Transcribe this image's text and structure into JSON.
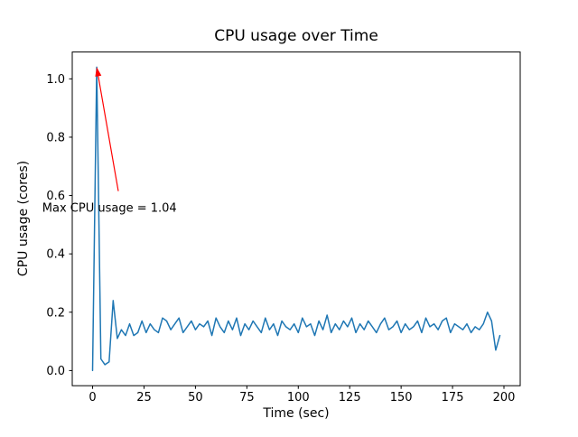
{
  "chart_data": {
    "type": "line",
    "title": "CPU usage over Time",
    "xlabel": "Time (sec)",
    "ylabel": "CPU usage (cores)",
    "line_color": "#1f77b4",
    "axis_color": "#000000",
    "background_color": "#ffffff",
    "grid": false,
    "legend": "none",
    "xlim": [
      -9.9,
      207.9
    ],
    "ylim": [
      -0.052,
      1.092
    ],
    "xticks": [
      0,
      25,
      50,
      75,
      100,
      125,
      150,
      175,
      200
    ],
    "yticks": [
      0.0,
      0.2,
      0.4,
      0.6,
      0.8,
      1.0
    ],
    "x": [
      0,
      2,
      4,
      6,
      8,
      10,
      12,
      14,
      16,
      18,
      20,
      22,
      24,
      26,
      28,
      30,
      32,
      34,
      36,
      38,
      40,
      42,
      44,
      46,
      48,
      50,
      52,
      54,
      56,
      58,
      60,
      62,
      64,
      66,
      68,
      70,
      72,
      74,
      76,
      78,
      80,
      82,
      84,
      86,
      88,
      90,
      92,
      94,
      96,
      98,
      100,
      102,
      104,
      106,
      108,
      110,
      112,
      114,
      116,
      118,
      120,
      122,
      124,
      126,
      128,
      130,
      132,
      134,
      136,
      138,
      140,
      142,
      144,
      146,
      148,
      150,
      152,
      154,
      156,
      158,
      160,
      162,
      164,
      166,
      168,
      170,
      172,
      174,
      176,
      178,
      180,
      182,
      184,
      186,
      188,
      190,
      192,
      194,
      196,
      198
    ],
    "y": [
      0.0,
      1.04,
      0.04,
      0.02,
      0.03,
      0.24,
      0.11,
      0.14,
      0.12,
      0.16,
      0.12,
      0.13,
      0.17,
      0.13,
      0.16,
      0.14,
      0.13,
      0.18,
      0.17,
      0.14,
      0.16,
      0.18,
      0.13,
      0.15,
      0.17,
      0.14,
      0.16,
      0.15,
      0.17,
      0.12,
      0.18,
      0.15,
      0.13,
      0.17,
      0.14,
      0.18,
      0.12,
      0.16,
      0.14,
      0.17,
      0.15,
      0.13,
      0.18,
      0.14,
      0.16,
      0.12,
      0.17,
      0.15,
      0.14,
      0.16,
      0.13,
      0.18,
      0.15,
      0.16,
      0.12,
      0.17,
      0.14,
      0.19,
      0.13,
      0.16,
      0.14,
      0.17,
      0.15,
      0.18,
      0.13,
      0.16,
      0.14,
      0.17,
      0.15,
      0.13,
      0.16,
      0.18,
      0.14,
      0.15,
      0.17,
      0.13,
      0.16,
      0.14,
      0.15,
      0.17,
      0.13,
      0.18,
      0.15,
      0.16,
      0.14,
      0.17,
      0.18,
      0.13,
      0.16,
      0.15,
      0.14,
      0.16,
      0.13,
      0.15,
      0.14,
      0.16,
      0.2,
      0.17,
      0.07,
      0.12
    ],
    "max_value": 1.04,
    "annotation": {
      "text": "Max CPU usage = 1.04",
      "color": "#ff0000",
      "tip": {
        "x": 2,
        "y": 1.04
      },
      "tail": {
        "x": 12.5,
        "y": 0.615
      },
      "text_pos": {
        "x": -24.5,
        "y": 0.545
      }
    }
  }
}
